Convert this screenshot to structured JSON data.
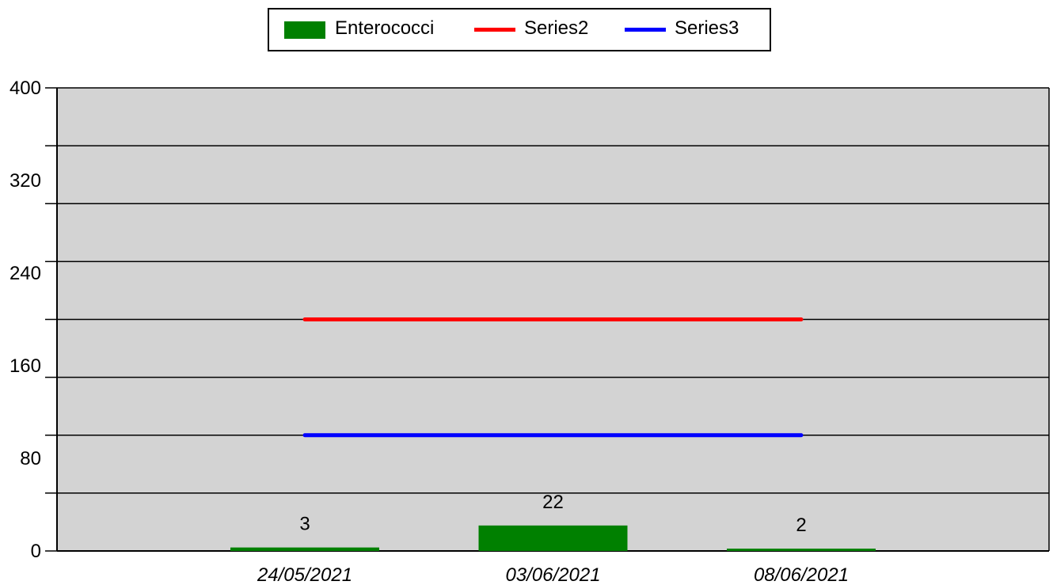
{
  "chart_data": {
    "type": "bar",
    "categories": [
      "24/05/2021",
      "03/06/2021",
      "08/06/2021"
    ],
    "series": [
      {
        "name": "Enterococci",
        "kind": "bar",
        "color": "#008000",
        "values": [
          3,
          22,
          2
        ],
        "data_labels": [
          "3",
          "22",
          "2"
        ]
      },
      {
        "name": "Series2",
        "kind": "line",
        "color": "#ff0000",
        "values": [
          200,
          200,
          200
        ]
      },
      {
        "name": "Series3",
        "kind": "line",
        "color": "#0000ff",
        "values": [
          100,
          100,
          100
        ]
      }
    ],
    "ylim": [
      0,
      400
    ],
    "yticks": [
      "0",
      "80",
      "160",
      "240",
      "320",
      "400"
    ],
    "y_gridlines": [
      0,
      50,
      100,
      150,
      200,
      250,
      300,
      350,
      400
    ],
    "grid": true,
    "plot_background": "#d3d3d3",
    "legend_position": "top-center",
    "title": "",
    "xlabel": "",
    "ylabel": ""
  }
}
